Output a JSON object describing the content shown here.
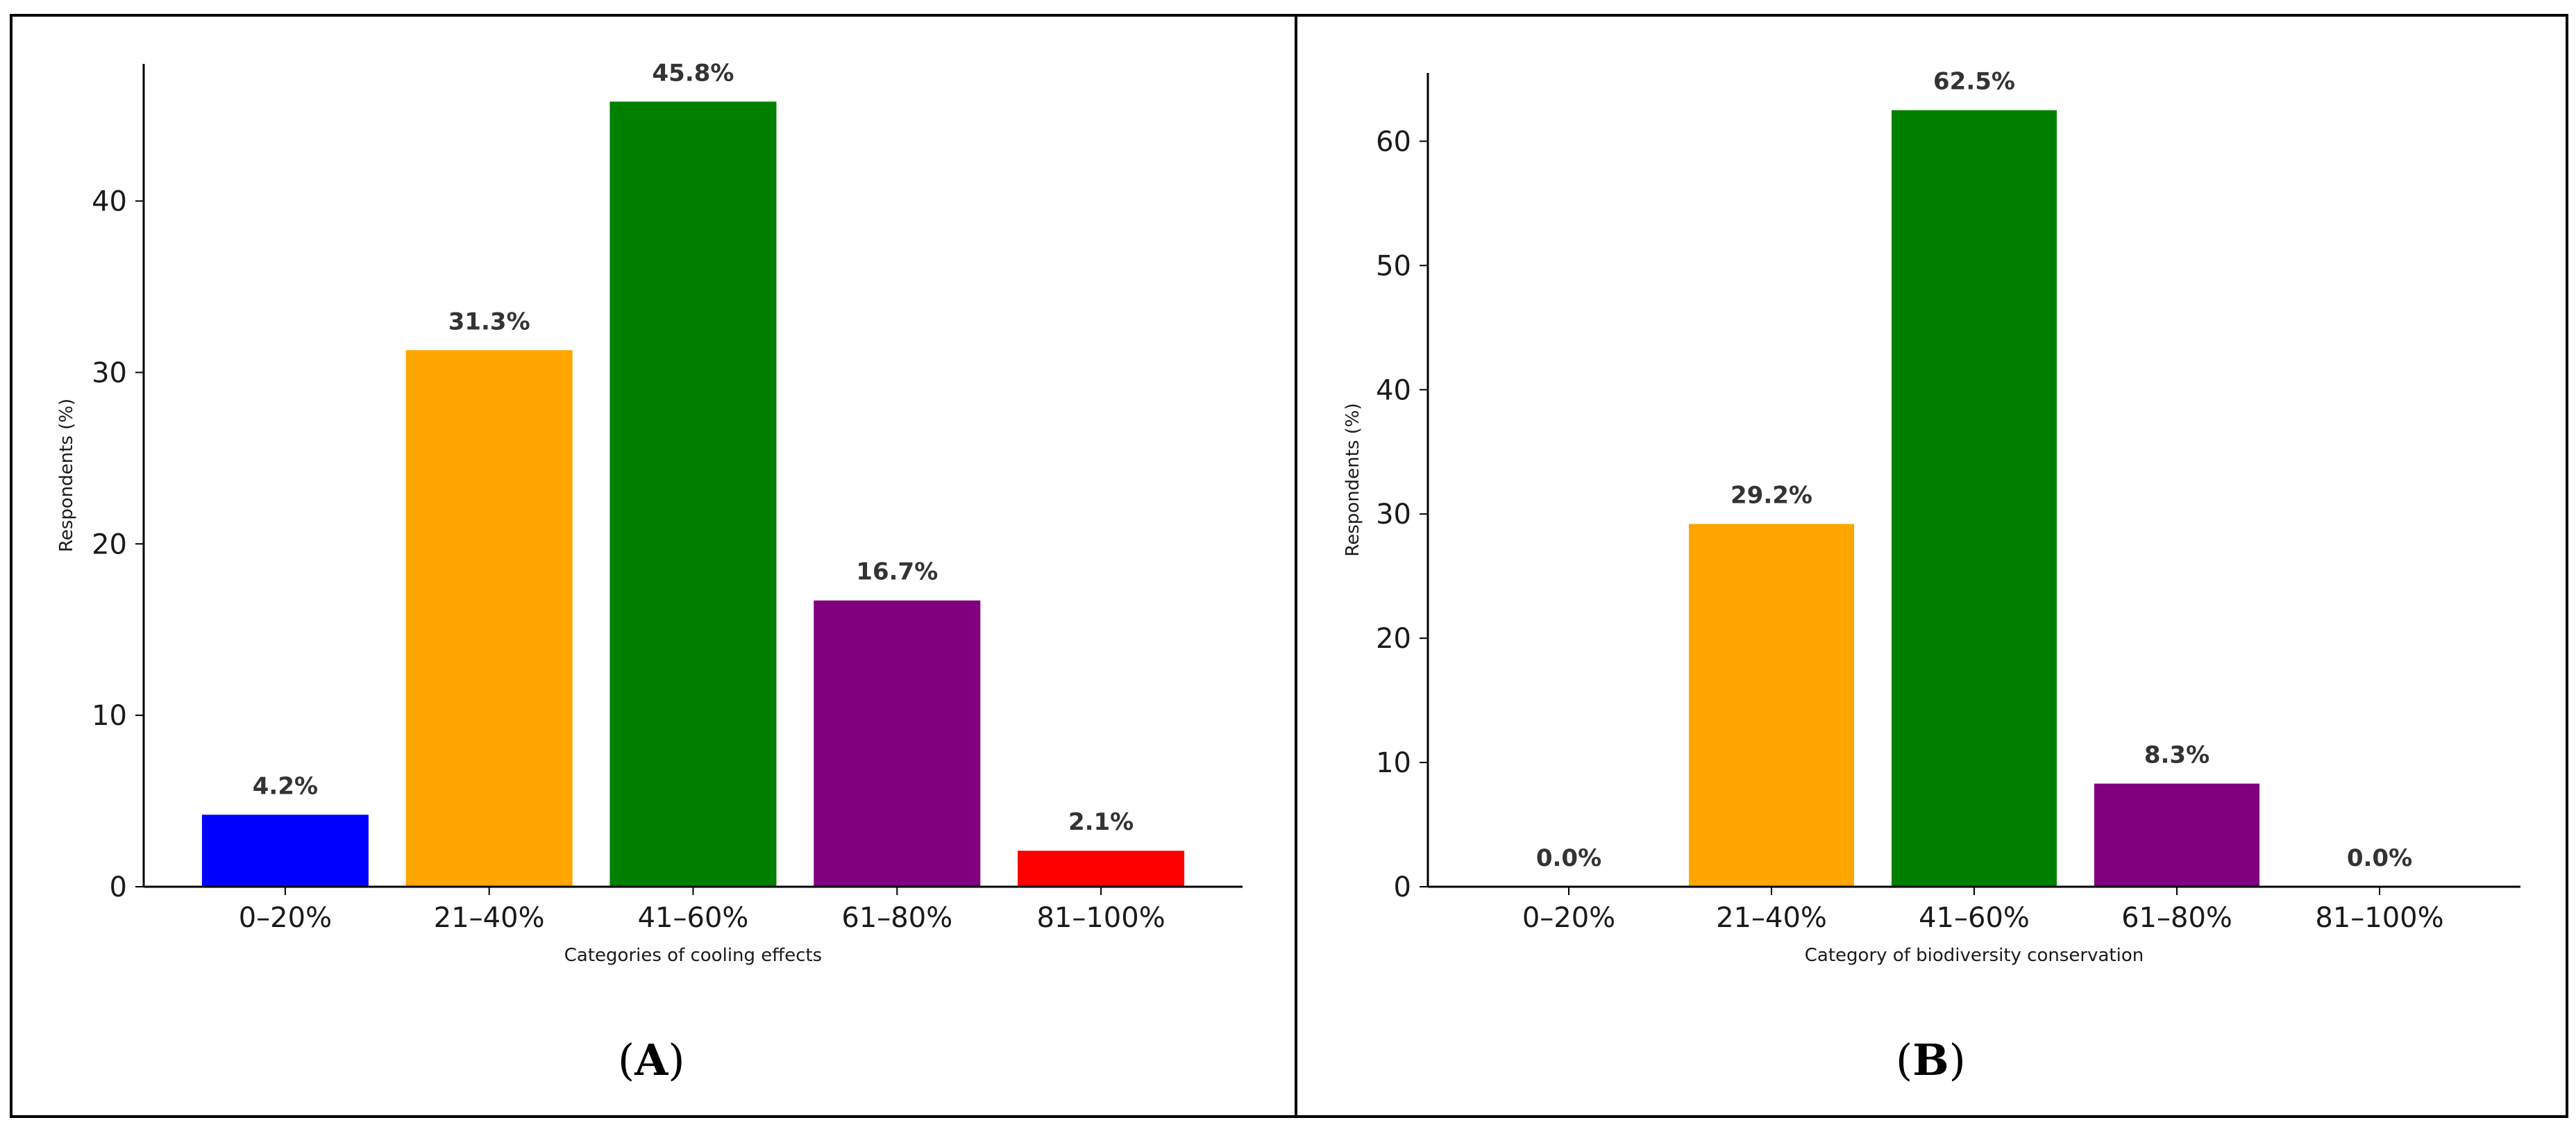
{
  "chart_data": [
    {
      "type": "bar",
      "panel_label": "A",
      "categories": [
        "0–20%",
        "21–40%",
        "41–60%",
        "61–80%",
        "81–100%"
      ],
      "values": [
        4.2,
        31.3,
        45.8,
        16.7,
        2.1
      ],
      "data_labels": [
        "4.2%",
        "31.3%",
        "45.8%",
        "16.7%",
        "2.1%"
      ],
      "colors": [
        "#0000ff",
        "#ffa500",
        "#008000",
        "#800080",
        "#ff0000"
      ],
      "xlabel": "Categories of cooling effects",
      "ylabel": "Respondents (%)",
      "ylim": [
        0,
        48
      ],
      "yticks": [
        0,
        10,
        20,
        30,
        40
      ],
      "grid": false
    },
    {
      "type": "bar",
      "panel_label": "B",
      "categories": [
        "0–20%",
        "21–40%",
        "41–60%",
        "61–80%",
        "81–100%"
      ],
      "values": [
        0.0,
        29.2,
        62.5,
        8.3,
        0.0
      ],
      "data_labels": [
        "0.0%",
        "29.2%",
        "62.5%",
        "8.3%",
        "0.0%"
      ],
      "colors": [
        "#0000ff",
        "#ffa500",
        "#008000",
        "#800080",
        "#ff0000"
      ],
      "xlabel": "Category of biodiversity conservation",
      "ylabel": "Respondents (%)",
      "ylim": [
        0,
        65.5
      ],
      "yticks": [
        0,
        10,
        20,
        30,
        40,
        50,
        60
      ],
      "grid": false
    }
  ]
}
